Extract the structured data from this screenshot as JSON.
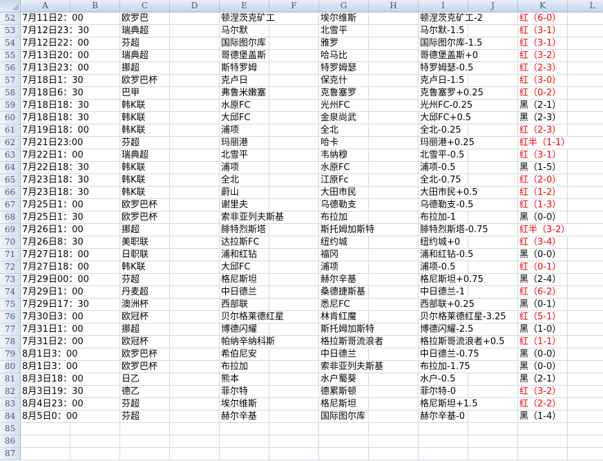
{
  "columns": [
    "A",
    "B",
    "C",
    "D",
    "E",
    "F",
    "G",
    "H",
    "I",
    "J",
    "K",
    "L"
  ],
  "cell_columns": {
    "A": "a",
    "C": "c",
    "E": "e",
    "G": "g",
    "I": "i",
    "K": "k"
  },
  "result_colors": {
    "red_prefix": "红",
    "red": "#FF0000",
    "black": "#000000"
  },
  "palette": {
    "grid_line": "#D0D7E5",
    "header_border": "#9EB6CE",
    "header_text": "#3D5A78"
  },
  "rows": [
    {
      "n": 52,
      "a": "7月11日2：00",
      "c": "欧罗巴",
      "e": "顿涅茨克矿工",
      "g": "埃尔维斯",
      "i": "顿涅茨克矿工-2",
      "k": "红（6-0）"
    },
    {
      "n": 53,
      "a": "7月12日23：30",
      "c": "瑞典超",
      "e": "马尔默",
      "g": "北雪平",
      "i": "马尔默-1.5",
      "k": "红（3-1）"
    },
    {
      "n": 54,
      "a": "7月12日22：00",
      "c": "芬超",
      "e": "国际图尔库",
      "g": "雅罗",
      "i": "国际图尔库-1.5",
      "k": "红（3-1）"
    },
    {
      "n": 55,
      "a": "7月13日20：00",
      "c": "瑞典超",
      "e": "哥德堡盖斯",
      "g": "哈马比",
      "i": "哥德堡盖斯+0",
      "k": "红（3-2）"
    },
    {
      "n": 56,
      "a": "7月13日23：00",
      "c": "挪超",
      "e": "斯特罗姆",
      "g": "特罗姆瑟",
      "i": "特罗姆瑟-0.5",
      "k": "红（2-3）"
    },
    {
      "n": 57,
      "a": "7月18日1：30",
      "c": "欧罗巴杯",
      "e": "克卢日",
      "g": "保克什",
      "i": "克卢日-1.5",
      "k": "红（3-0）"
    },
    {
      "n": 58,
      "a": "7月18日6：30",
      "c": "巴甲",
      "e": "弗鲁米嫩塞",
      "g": "克鲁塞罗",
      "i": "克鲁塞罗+0.25",
      "k": "红（0-2）"
    },
    {
      "n": 59,
      "a": "7月18日18：30",
      "c": "韩K联",
      "e": "水原FC",
      "g": "光州FC",
      "i": "光州FC-0.25",
      "k": "黑（2-1）"
    },
    {
      "n": 60,
      "a": "7月18日18：30",
      "c": "韩K联",
      "e": "大邱FC",
      "g": "金泉尚武",
      "i": "大邱FC+0.5",
      "k": "黑（2-3）"
    },
    {
      "n": 61,
      "a": "7月19日18：00",
      "c": "韩K联",
      "e": "浦项",
      "g": "全北",
      "i": "全北-0.25",
      "k": "红（2-3）"
    },
    {
      "n": 62,
      "a": "7月21日23:00",
      "c": "芬超",
      "e": "玛丽港",
      "g": "哈卡",
      "i": "玛丽港+0.25",
      "k": "红半（1-1）"
    },
    {
      "n": 63,
      "a": "7月22日1：00",
      "c": "瑞典超",
      "e": "北雪平",
      "g": "韦纳穆",
      "i": "北雪平-0.5",
      "k": "红（3-1）"
    },
    {
      "n": 64,
      "a": "7月22日18：30",
      "c": "韩K联",
      "e": "浦项",
      "g": "水原FC",
      "i": "浦项-0.5",
      "k": "黑（1-5）"
    },
    {
      "n": 65,
      "a": "7月23日18：30",
      "c": "韩K联",
      "e": "全北",
      "g": "江原Fc",
      "i": "全北-0.75",
      "k": "红（2-0）"
    },
    {
      "n": 66,
      "a": "7月23日18：30",
      "c": "韩K联",
      "e": "蔚山",
      "g": "大田市民",
      "i": "大田市民+0.5",
      "k": "红（1-2）"
    },
    {
      "n": 67,
      "a": "7月25日1：00",
      "c": "欧罗巴杯",
      "e": "谢里夫",
      "g": "乌德勒支",
      "i": "乌德勒支-0.5",
      "k": "红（1-3）"
    },
    {
      "n": 68,
      "a": "7月25日1：30",
      "c": "欧罗巴杯",
      "e": "索非亚列夫斯基",
      "g": "布拉加",
      "i": "布拉加-1",
      "k": "黑（0-0）"
    },
    {
      "n": 69,
      "a": "7月26日1：00",
      "c": "挪超",
      "e": "腓特烈斯塔",
      "g": "斯托姆加斯特",
      "i": "腓特烈斯塔-0.75",
      "k": "红半（3-2）"
    },
    {
      "n": 70,
      "a": "7月26日8：30",
      "c": "美职联",
      "e": "达拉斯FC",
      "g": "纽约城",
      "i": "纽约城+0",
      "k": "红（3-4）"
    },
    {
      "n": 71,
      "a": "7月27日18：00",
      "c": "日职联",
      "e": "浦和红钻",
      "g": "福冈",
      "i": "浦和红钻-0.5",
      "k": "黑（0-0）"
    },
    {
      "n": 72,
      "a": "7月27日18：00",
      "c": "韩K联",
      "e": "大邱FC",
      "g": "浦项",
      "i": "浦项-0.5",
      "k": "红（0-1）"
    },
    {
      "n": 73,
      "a": "7月29日00：00",
      "c": "芬超",
      "e": "格尼斯坦",
      "g": "赫尔辛基",
      "i": "格尼斯坦+0.75",
      "k": "黑（2-4）"
    },
    {
      "n": 74,
      "a": "7月29日1：00",
      "c": "丹麦超",
      "e": "中日德兰",
      "g": "桑德捷斯基",
      "i": "中日德兰-1",
      "k": "红（6-2）"
    },
    {
      "n": 75,
      "a": "7月29日17：30",
      "c": "澳洲杯",
      "e": "西部联",
      "g": "悉尼FC",
      "i": "西部联+0.25",
      "k": "黑（0-1）"
    },
    {
      "n": 76,
      "a": "7月30日3：00",
      "c": "欧冠杯",
      "e": "贝尔格莱德红星",
      "g": "林肯红魔",
      "i": "贝尔格莱德红星-3.25",
      "k": "红（5-1）"
    },
    {
      "n": 77,
      "a": "7月31日1：00",
      "c": "挪超",
      "e": "博德闪耀",
      "g": "斯托姆加斯特",
      "i": "博德闪耀-2.5",
      "k": "黑（1-0）"
    },
    {
      "n": 78,
      "a": "7月31日2：00",
      "c": "欧冠杯",
      "e": "帕纳辛纳科斯",
      "g": "格拉斯哥流浪者",
      "i": "格拉斯哥流浪者+0.5",
      "k": "红（1-1）"
    },
    {
      "n": 79,
      "a": "8月1日3：00",
      "c": "欧罗巴杯",
      "e": "希伯尼安",
      "g": "中日德兰",
      "i": "中日德兰-0.75",
      "k": "黑（0-0）"
    },
    {
      "n": 80,
      "a": "8月1日3：00",
      "c": "欧罗巴杯",
      "e": "布拉加",
      "g": "索非亚列夫斯基",
      "i": "布拉加-1.75",
      "k": "黑（0-0）"
    },
    {
      "n": 81,
      "a": "8月3日18：00",
      "c": "日乙",
      "e": "熊本",
      "g": "水户蜀葵",
      "i": "水户-0.5",
      "k": "黑（2-1）"
    },
    {
      "n": 82,
      "a": "8月3日19：30",
      "c": "德乙",
      "e": "菲尔特",
      "g": "德累斯顿",
      "i": "菲尔特-0",
      "k": "红（3-2）"
    },
    {
      "n": 83,
      "a": "8月4日23：00",
      "c": "芬超",
      "e": "埃尔维斯",
      "g": "格尼斯坦",
      "i": "格尼斯坦+1.5",
      "k": "红（2-2）"
    },
    {
      "n": 84,
      "a": "8月5日0：00",
      "c": "芬超",
      "e": "赫尔辛基",
      "g": "国际图尔库",
      "i": "赫尔辛基-0",
      "k": "黑（1-4）"
    },
    {
      "n": 85
    },
    {
      "n": 86
    },
    {
      "n": 87
    }
  ]
}
